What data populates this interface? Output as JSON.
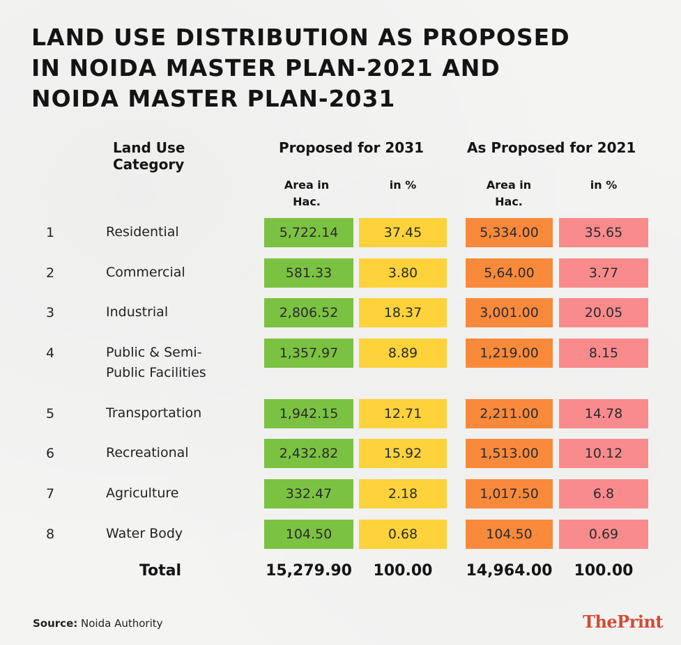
{
  "title_lines": [
    "LAND USE DISTRIBUTION AS PROPOSED",
    "IN NOIDA MASTER PLAN-2021 AND",
    "NOIDA MASTER PLAN-2031"
  ],
  "headers": {
    "category_line1": "Land Use",
    "category_line2": "Category",
    "group_2031": "Proposed for 2031",
    "group_2021": "As Proposed for 2021",
    "area_line1": "Area in",
    "area_line2": "Hac.",
    "percent": "in %"
  },
  "colors": {
    "area_2031": "#7cc242",
    "percent_2031": "#fdd23b",
    "area_2021": "#f98a3c",
    "percent_2021": "#f98b8d",
    "brand": "#d24b33"
  },
  "rows": [
    {
      "num": "1",
      "category": "Residential",
      "area_2031": "5,722.14",
      "pct_2031": "37.45",
      "area_2021": "5,334.00",
      "pct_2021": "35.65"
    },
    {
      "num": "2",
      "category": "Commercial",
      "area_2031": "581.33",
      "pct_2031": "3.80",
      "area_2021": "5,64.00",
      "pct_2021": "3.77"
    },
    {
      "num": "3",
      "category": "Industrial",
      "area_2031": "2,806.52",
      "pct_2031": "18.37",
      "area_2021": "3,001.00",
      "pct_2021": "20.05"
    },
    {
      "num": "4",
      "category": "Public & Semi-",
      "category_line2": "Public Facilities",
      "area_2031": "1,357.97",
      "pct_2031": "8.89",
      "area_2021": "1,219.00",
      "pct_2021": "8.15"
    },
    {
      "num": "5",
      "category": "Transportation",
      "area_2031": "1,942.15",
      "pct_2031": "12.71",
      "area_2021": "2,211.00",
      "pct_2021": "14.78"
    },
    {
      "num": "6",
      "category": "Recreational",
      "area_2031": "2,432.82",
      "pct_2031": "15.92",
      "area_2021": "1,513.00",
      "pct_2021": "10.12"
    },
    {
      "num": "7",
      "category": "Agriculture",
      "area_2031": "332.47",
      "pct_2031": "2.18",
      "area_2021": "1,017.50",
      "pct_2021": "6.8"
    },
    {
      "num": "8",
      "category": "Water Body",
      "area_2031": "104.50",
      "pct_2031": "0.68",
      "area_2021": "104.50",
      "pct_2021": "0.69"
    }
  ],
  "total": {
    "label": "Total",
    "area_2031": "15,279.90",
    "pct_2031": "100.00",
    "area_2021": "14,964.00",
    "pct_2021": "100.00"
  },
  "source": {
    "label": "Source:",
    "value": "Noida Authority"
  },
  "brand": "ThePrint",
  "chart_data": {
    "type": "table",
    "title": "Land Use Distribution as Proposed in Noida Master Plan-2021 and Noida Master Plan-2031",
    "columns": [
      "#",
      "Land Use Category",
      "Proposed for 2031 - Area in Hac.",
      "Proposed for 2031 - in %",
      "As Proposed for 2021 - Area in Hac.",
      "As Proposed for 2021 - in %"
    ],
    "rows": [
      [
        1,
        "Residential",
        5722.14,
        37.45,
        5334.0,
        35.65
      ],
      [
        2,
        "Commercial",
        581.33,
        3.8,
        564.0,
        3.77
      ],
      [
        3,
        "Industrial",
        2806.52,
        18.37,
        3001.0,
        20.05
      ],
      [
        4,
        "Public & Semi-Public Facilities",
        1357.97,
        8.89,
        1219.0,
        8.15
      ],
      [
        5,
        "Transportation",
        1942.15,
        12.71,
        2211.0,
        14.78
      ],
      [
        6,
        "Recreational",
        2432.82,
        15.92,
        1513.0,
        10.12
      ],
      [
        7,
        "Agriculture",
        332.47,
        2.18,
        1017.5,
        6.8
      ],
      [
        8,
        "Water Body",
        104.5,
        0.68,
        104.5,
        0.69
      ]
    ],
    "totals": [
      "Total",
      15279.9,
      100.0,
      14964.0,
      100.0
    ],
    "source": "Noida Authority"
  }
}
